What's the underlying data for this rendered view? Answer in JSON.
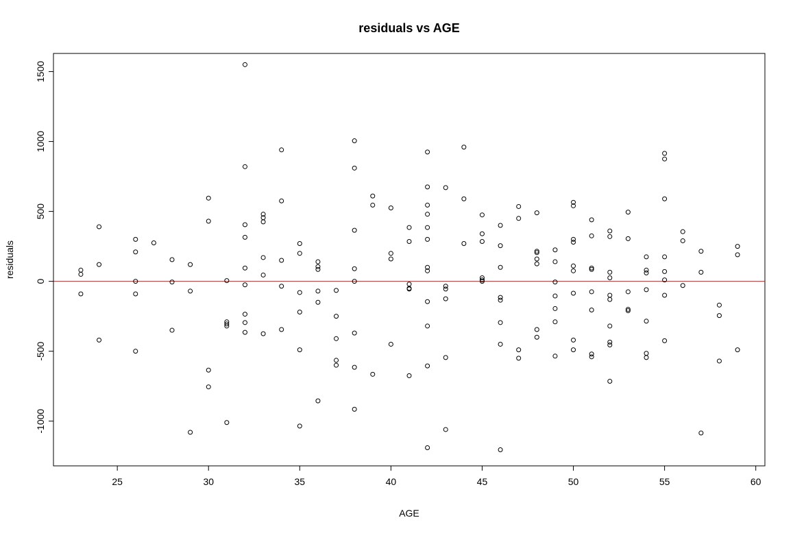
{
  "chart_data": {
    "type": "scatter",
    "title": "residuals vs AGE",
    "xlabel": "AGE",
    "ylabel": "residuals",
    "xlim": [
      21.5,
      60.5
    ],
    "ylim": [
      -1320,
      1630
    ],
    "x_ticks": [
      25,
      30,
      35,
      40,
      45,
      50,
      55,
      60
    ],
    "y_ticks": [
      -1000,
      -500,
      0,
      500,
      1000,
      1500
    ],
    "reference_line": {
      "y": 0,
      "color": "#e41a1c"
    },
    "point_color": "#000000",
    "points": [
      [
        23,
        80
      ],
      [
        23,
        50
      ],
      [
        23,
        -90
      ],
      [
        24,
        390
      ],
      [
        24,
        120
      ],
      [
        24,
        -420
      ],
      [
        26,
        300
      ],
      [
        26,
        210
      ],
      [
        26,
        0
      ],
      [
        26,
        -90
      ],
      [
        26,
        -500
      ],
      [
        27,
        275
      ],
      [
        28,
        155
      ],
      [
        28,
        -5
      ],
      [
        28,
        -350
      ],
      [
        29,
        120
      ],
      [
        29,
        -70
      ],
      [
        29,
        -1080
      ],
      [
        30,
        595
      ],
      [
        30,
        430
      ],
      [
        30,
        -635
      ],
      [
        30,
        -755
      ],
      [
        31,
        5
      ],
      [
        31,
        -290
      ],
      [
        31,
        -305
      ],
      [
        31,
        -320
      ],
      [
        31,
        -1010
      ],
      [
        32,
        1550
      ],
      [
        32,
        820
      ],
      [
        32,
        405
      ],
      [
        32,
        315
      ],
      [
        32,
        95
      ],
      [
        32,
        -25
      ],
      [
        32,
        -235
      ],
      [
        32,
        -295
      ],
      [
        32,
        -365
      ],
      [
        33,
        480
      ],
      [
        33,
        455
      ],
      [
        33,
        425
      ],
      [
        33,
        170
      ],
      [
        33,
        45
      ],
      [
        33,
        -375
      ],
      [
        34,
        940
      ],
      [
        34,
        575
      ],
      [
        34,
        150
      ],
      [
        34,
        -35
      ],
      [
        34,
        -345
      ],
      [
        35,
        270
      ],
      [
        35,
        200
      ],
      [
        35,
        -80
      ],
      [
        35,
        -220
      ],
      [
        35,
        -490
      ],
      [
        35,
        -1035
      ],
      [
        36,
        140
      ],
      [
        36,
        105
      ],
      [
        36,
        85
      ],
      [
        36,
        -70
      ],
      [
        36,
        -150
      ],
      [
        36,
        -855
      ],
      [
        37,
        -65
      ],
      [
        37,
        -250
      ],
      [
        37,
        -410
      ],
      [
        37,
        -565
      ],
      [
        37,
        -600
      ],
      [
        38,
        1005
      ],
      [
        38,
        810
      ],
      [
        38,
        365
      ],
      [
        38,
        90
      ],
      [
        38,
        0
      ],
      [
        38,
        -370
      ],
      [
        38,
        -615
      ],
      [
        38,
        -915
      ],
      [
        39,
        610
      ],
      [
        39,
        545
      ],
      [
        39,
        -665
      ],
      [
        40,
        525
      ],
      [
        40,
        200
      ],
      [
        40,
        160
      ],
      [
        40,
        -450
      ],
      [
        41,
        385
      ],
      [
        41,
        285
      ],
      [
        41,
        -20
      ],
      [
        41,
        -50
      ],
      [
        41,
        -55
      ],
      [
        41,
        -675
      ],
      [
        42,
        925
      ],
      [
        42,
        675
      ],
      [
        42,
        545
      ],
      [
        42,
        480
      ],
      [
        42,
        385
      ],
      [
        42,
        300
      ],
      [
        42,
        100
      ],
      [
        42,
        75
      ],
      [
        42,
        -145
      ],
      [
        42,
        -320
      ],
      [
        42,
        -605
      ],
      [
        42,
        -1190
      ],
      [
        43,
        670
      ],
      [
        43,
        -35
      ],
      [
        43,
        -55
      ],
      [
        43,
        -125
      ],
      [
        43,
        -545
      ],
      [
        43,
        -1060
      ],
      [
        44,
        960
      ],
      [
        44,
        590
      ],
      [
        44,
        270
      ],
      [
        45,
        475
      ],
      [
        45,
        340
      ],
      [
        45,
        285
      ],
      [
        45,
        25
      ],
      [
        45,
        10
      ],
      [
        45,
        0
      ],
      [
        46,
        400
      ],
      [
        46,
        255
      ],
      [
        46,
        100
      ],
      [
        46,
        -115
      ],
      [
        46,
        -135
      ],
      [
        46,
        -295
      ],
      [
        46,
        -450
      ],
      [
        46,
        -1205
      ],
      [
        47,
        535
      ],
      [
        47,
        450
      ],
      [
        47,
        -490
      ],
      [
        47,
        -550
      ],
      [
        48,
        490
      ],
      [
        48,
        215
      ],
      [
        48,
        205
      ],
      [
        48,
        160
      ],
      [
        48,
        125
      ],
      [
        48,
        -345
      ],
      [
        48,
        -400
      ],
      [
        49,
        225
      ],
      [
        49,
        140
      ],
      [
        49,
        -5
      ],
      [
        49,
        -105
      ],
      [
        49,
        -195
      ],
      [
        49,
        -290
      ],
      [
        49,
        -535
      ],
      [
        50,
        565
      ],
      [
        50,
        540
      ],
      [
        50,
        300
      ],
      [
        50,
        280
      ],
      [
        50,
        110
      ],
      [
        50,
        75
      ],
      [
        50,
        -85
      ],
      [
        50,
        -420
      ],
      [
        50,
        -490
      ],
      [
        51,
        440
      ],
      [
        51,
        325
      ],
      [
        51,
        95
      ],
      [
        51,
        85
      ],
      [
        51,
        -75
      ],
      [
        51,
        -205
      ],
      [
        51,
        -520
      ],
      [
        51,
        -540
      ],
      [
        52,
        360
      ],
      [
        52,
        320
      ],
      [
        52,
        65
      ],
      [
        52,
        25
      ],
      [
        52,
        -100
      ],
      [
        52,
        -130
      ],
      [
        52,
        -320
      ],
      [
        52,
        -435
      ],
      [
        52,
        -455
      ],
      [
        52,
        -715
      ],
      [
        53,
        495
      ],
      [
        53,
        305
      ],
      [
        53,
        -75
      ],
      [
        53,
        -200
      ],
      [
        53,
        -210
      ],
      [
        54,
        175
      ],
      [
        54,
        80
      ],
      [
        54,
        60
      ],
      [
        54,
        -60
      ],
      [
        54,
        -285
      ],
      [
        54,
        -515
      ],
      [
        54,
        -545
      ],
      [
        55,
        915
      ],
      [
        55,
        875
      ],
      [
        55,
        590
      ],
      [
        55,
        175
      ],
      [
        55,
        70
      ],
      [
        55,
        10
      ],
      [
        55,
        -100
      ],
      [
        55,
        -425
      ],
      [
        56,
        355
      ],
      [
        56,
        290
      ],
      [
        56,
        -30
      ],
      [
        57,
        215
      ],
      [
        57,
        65
      ],
      [
        57,
        -1085
      ],
      [
        58,
        -170
      ],
      [
        58,
        -245
      ],
      [
        58,
        -570
      ],
      [
        59,
        250
      ],
      [
        59,
        190
      ],
      [
        59,
        -490
      ]
    ]
  }
}
